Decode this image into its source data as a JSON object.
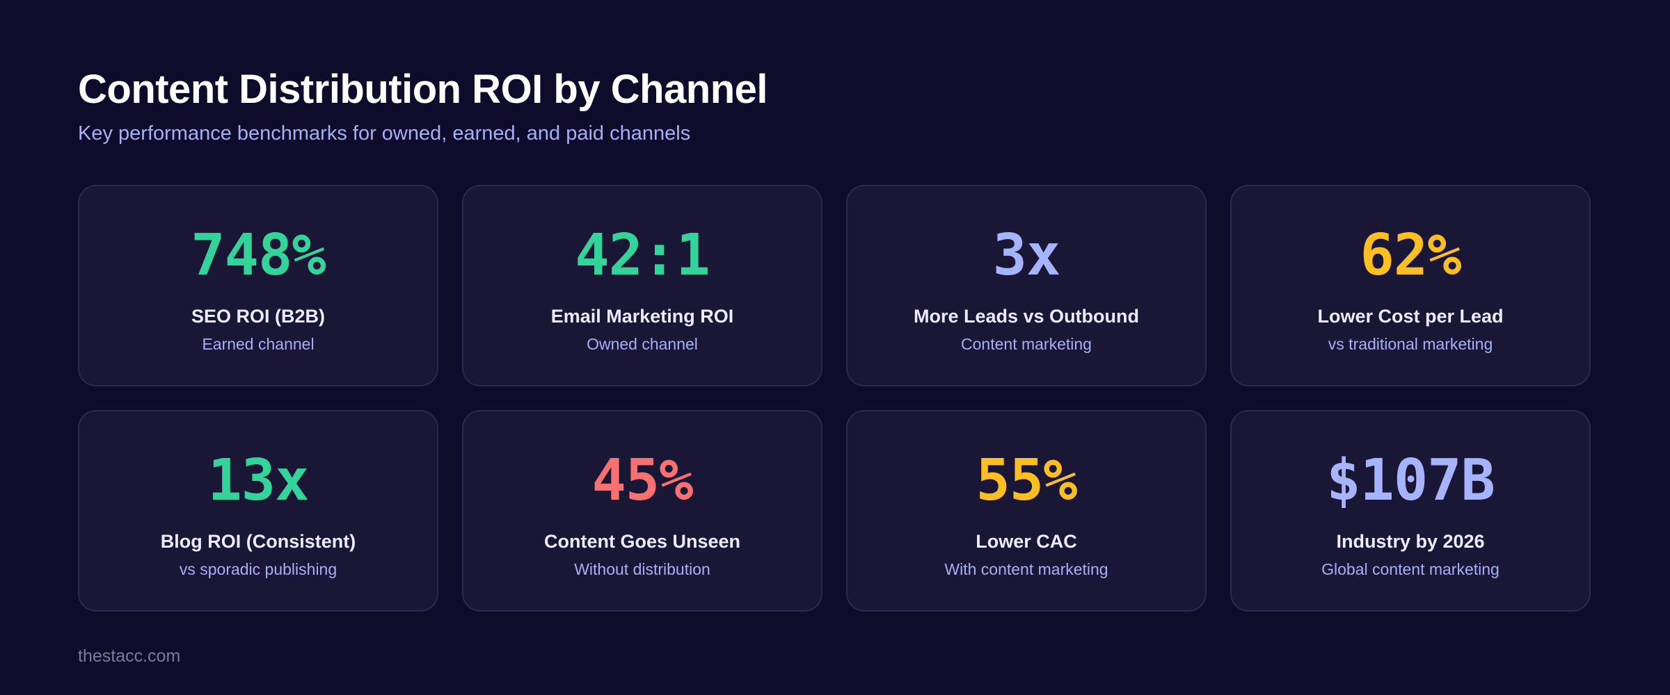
{
  "title": "Content Distribution ROI by Channel",
  "subtitle": "Key performance benchmarks for owned, earned, and paid channels",
  "colors": {
    "background": "#0f0b2b",
    "card": "#1a1636",
    "green": "#34d399",
    "indigo": "#a5b4fc",
    "amber": "#fbbf24",
    "red": "#f87171"
  },
  "cards": [
    {
      "value": "748%",
      "label": "SEO ROI (B2B)",
      "sub": "Earned channel",
      "color": "#34d399"
    },
    {
      "value": "42:1",
      "label": "Email Marketing ROI",
      "sub": "Owned channel",
      "color": "#34d399"
    },
    {
      "value": "3x",
      "label": "More Leads vs Outbound",
      "sub": "Content marketing",
      "color": "#a5b4fc"
    },
    {
      "value": "62%",
      "label": "Lower Cost per Lead",
      "sub": "vs traditional marketing",
      "color": "#fbbf24"
    },
    {
      "value": "13x",
      "label": "Blog ROI (Consistent)",
      "sub": "vs sporadic publishing",
      "color": "#34d399"
    },
    {
      "value": "45%",
      "label": "Content Goes Unseen",
      "sub": "Without distribution",
      "color": "#f87171"
    },
    {
      "value": "55%",
      "label": "Lower CAC",
      "sub": "With content marketing",
      "color": "#fbbf24"
    },
    {
      "value": "$107B",
      "label": "Industry by 2026",
      "sub": "Global content marketing",
      "color": "#a5b4fc"
    }
  ],
  "footer": "thestacc.com"
}
